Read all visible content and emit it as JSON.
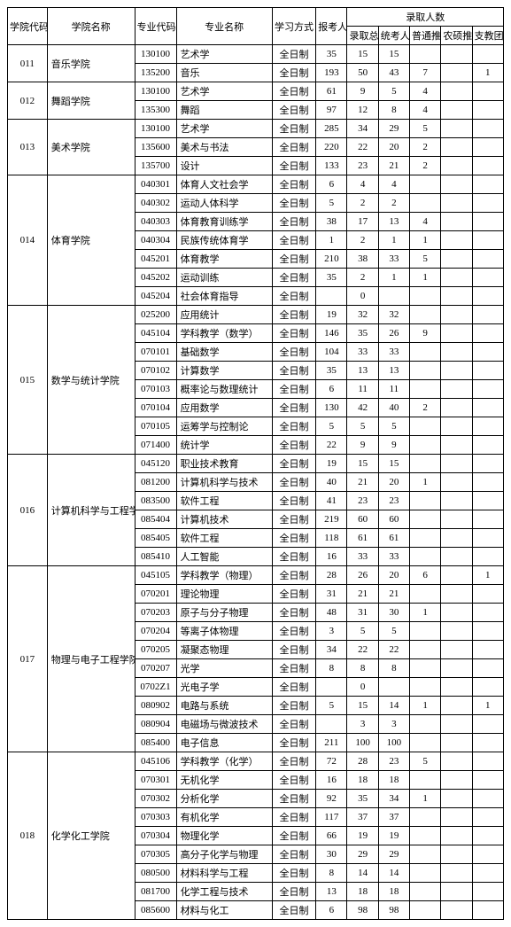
{
  "headers": {
    "col_school_code": "学院代码",
    "col_school_name": "学院名称",
    "col_major_code": "专业代码",
    "col_major_name": "专业名称",
    "col_study_mode": "学习方式",
    "col_applicants": "报考人数",
    "col_admitted_group": "录取人数",
    "col_admit_total": "录取总数",
    "col_admit_exam": "统考人数",
    "col_admit_general": "普通推免",
    "col_admit_rural": "农硕推免",
    "col_admit_support": "支教团推免"
  },
  "schools": [
    {
      "code": "011",
      "name": "音乐学院",
      "rows": [
        {
          "mc": "130100",
          "mn": "艺术学",
          "md": "全日制",
          "ap": "35",
          "a": "15",
          "b": "15",
          "c": "",
          "d": "",
          "e": ""
        },
        {
          "mc": "135200",
          "mn": "音乐",
          "md": "全日制",
          "ap": "193",
          "a": "50",
          "b": "43",
          "c": "7",
          "d": "",
          "e": "1"
        }
      ]
    },
    {
      "code": "012",
      "name": "舞蹈学院",
      "rows": [
        {
          "mc": "130100",
          "mn": "艺术学",
          "md": "全日制",
          "ap": "61",
          "a": "9",
          "b": "5",
          "c": "4",
          "d": "",
          "e": ""
        },
        {
          "mc": "135300",
          "mn": "舞蹈",
          "md": "全日制",
          "ap": "97",
          "a": "12",
          "b": "8",
          "c": "4",
          "d": "",
          "e": ""
        }
      ]
    },
    {
      "code": "013",
      "name": "美术学院",
      "rows": [
        {
          "mc": "130100",
          "mn": "艺术学",
          "md": "全日制",
          "ap": "285",
          "a": "34",
          "b": "29",
          "c": "5",
          "d": "",
          "e": ""
        },
        {
          "mc": "135600",
          "mn": "美术与书法",
          "md": "全日制",
          "ap": "220",
          "a": "22",
          "b": "20",
          "c": "2",
          "d": "",
          "e": ""
        },
        {
          "mc": "135700",
          "mn": "设计",
          "md": "全日制",
          "ap": "133",
          "a": "23",
          "b": "21",
          "c": "2",
          "d": "",
          "e": ""
        }
      ]
    },
    {
      "code": "014",
      "name": "体育学院",
      "rows": [
        {
          "mc": "040301",
          "mn": "体育人文社会学",
          "md": "全日制",
          "ap": "6",
          "a": "4",
          "b": "4",
          "c": "",
          "d": "",
          "e": ""
        },
        {
          "mc": "040302",
          "mn": "运动人体科学",
          "md": "全日制",
          "ap": "5",
          "a": "2",
          "b": "2",
          "c": "",
          "d": "",
          "e": ""
        },
        {
          "mc": "040303",
          "mn": "体育教育训练学",
          "md": "全日制",
          "ap": "38",
          "a": "17",
          "b": "13",
          "c": "4",
          "d": "",
          "e": ""
        },
        {
          "mc": "040304",
          "mn": "民族传统体育学",
          "md": "全日制",
          "ap": "1",
          "a": "2",
          "b": "1",
          "c": "1",
          "d": "",
          "e": ""
        },
        {
          "mc": "045201",
          "mn": "体育教学",
          "md": "全日制",
          "ap": "210",
          "a": "38",
          "b": "33",
          "c": "5",
          "d": "",
          "e": ""
        },
        {
          "mc": "045202",
          "mn": "运动训练",
          "md": "全日制",
          "ap": "35",
          "a": "2",
          "b": "1",
          "c": "1",
          "d": "",
          "e": ""
        },
        {
          "mc": "045204",
          "mn": "社会体育指导",
          "md": "全日制",
          "ap": "",
          "a": "0",
          "b": "",
          "c": "",
          "d": "",
          "e": ""
        }
      ]
    },
    {
      "code": "015",
      "name": "数学与统计学院",
      "rows": [
        {
          "mc": "025200",
          "mn": "应用统计",
          "md": "全日制",
          "ap": "19",
          "a": "32",
          "b": "32",
          "c": "",
          "d": "",
          "e": ""
        },
        {
          "mc": "045104",
          "mn": "学科教学（数学）",
          "md": "全日制",
          "ap": "146",
          "a": "35",
          "b": "26",
          "c": "9",
          "d": "",
          "e": ""
        },
        {
          "mc": "070101",
          "mn": "基础数学",
          "md": "全日制",
          "ap": "104",
          "a": "33",
          "b": "33",
          "c": "",
          "d": "",
          "e": ""
        },
        {
          "mc": "070102",
          "mn": "计算数学",
          "md": "全日制",
          "ap": "35",
          "a": "13",
          "b": "13",
          "c": "",
          "d": "",
          "e": ""
        },
        {
          "mc": "070103",
          "mn": "概率论与数理统计",
          "md": "全日制",
          "ap": "6",
          "a": "11",
          "b": "11",
          "c": "",
          "d": "",
          "e": ""
        },
        {
          "mc": "070104",
          "mn": "应用数学",
          "md": "全日制",
          "ap": "130",
          "a": "42",
          "b": "40",
          "c": "2",
          "d": "",
          "e": ""
        },
        {
          "mc": "070105",
          "mn": "运筹学与控制论",
          "md": "全日制",
          "ap": "5",
          "a": "5",
          "b": "5",
          "c": "",
          "d": "",
          "e": ""
        },
        {
          "mc": "071400",
          "mn": "统计学",
          "md": "全日制",
          "ap": "22",
          "a": "9",
          "b": "9",
          "c": "",
          "d": "",
          "e": ""
        }
      ]
    },
    {
      "code": "016",
      "name": "计算机科学与工程学院",
      "rows": [
        {
          "mc": "045120",
          "mn": "职业技术教育",
          "md": "全日制",
          "ap": "19",
          "a": "15",
          "b": "15",
          "c": "",
          "d": "",
          "e": ""
        },
        {
          "mc": "081200",
          "mn": "计算机科学与技术",
          "md": "全日制",
          "ap": "40",
          "a": "21",
          "b": "20",
          "c": "1",
          "d": "",
          "e": ""
        },
        {
          "mc": "083500",
          "mn": "软件工程",
          "md": "全日制",
          "ap": "41",
          "a": "23",
          "b": "23",
          "c": "",
          "d": "",
          "e": ""
        },
        {
          "mc": "085404",
          "mn": "计算机技术",
          "md": "全日制",
          "ap": "219",
          "a": "60",
          "b": "60",
          "c": "",
          "d": "",
          "e": ""
        },
        {
          "mc": "085405",
          "mn": "软件工程",
          "md": "全日制",
          "ap": "118",
          "a": "61",
          "b": "61",
          "c": "",
          "d": "",
          "e": ""
        },
        {
          "mc": "085410",
          "mn": "人工智能",
          "md": "全日制",
          "ap": "16",
          "a": "33",
          "b": "33",
          "c": "",
          "d": "",
          "e": ""
        }
      ]
    },
    {
      "code": "017",
      "name": "物理与电子工程学院",
      "rows": [
        {
          "mc": "045105",
          "mn": "学科教学（物理）",
          "md": "全日制",
          "ap": "28",
          "a": "26",
          "b": "20",
          "c": "6",
          "d": "",
          "e": "1"
        },
        {
          "mc": "070201",
          "mn": "理论物理",
          "md": "全日制",
          "ap": "31",
          "a": "21",
          "b": "21",
          "c": "",
          "d": "",
          "e": ""
        },
        {
          "mc": "070203",
          "mn": "原子与分子物理",
          "md": "全日制",
          "ap": "48",
          "a": "31",
          "b": "30",
          "c": "1",
          "d": "",
          "e": ""
        },
        {
          "mc": "070204",
          "mn": "等离子体物理",
          "md": "全日制",
          "ap": "3",
          "a": "5",
          "b": "5",
          "c": "",
          "d": "",
          "e": ""
        },
        {
          "mc": "070205",
          "mn": "凝聚态物理",
          "md": "全日制",
          "ap": "34",
          "a": "22",
          "b": "22",
          "c": "",
          "d": "",
          "e": ""
        },
        {
          "mc": "070207",
          "mn": "光学",
          "md": "全日制",
          "ap": "8",
          "a": "8",
          "b": "8",
          "c": "",
          "d": "",
          "e": ""
        },
        {
          "mc": "0702Z1",
          "mn": "光电子学",
          "md": "全日制",
          "ap": "",
          "a": "0",
          "b": "",
          "c": "",
          "d": "",
          "e": ""
        },
        {
          "mc": "080902",
          "mn": "电路与系统",
          "md": "全日制",
          "ap": "5",
          "a": "15",
          "b": "14",
          "c": "1",
          "d": "",
          "e": "1"
        },
        {
          "mc": "080904",
          "mn": "电磁场与微波技术",
          "md": "全日制",
          "ap": "",
          "a": "3",
          "b": "3",
          "c": "",
          "d": "",
          "e": ""
        },
        {
          "mc": "085400",
          "mn": "电子信息",
          "md": "全日制",
          "ap": "211",
          "a": "100",
          "b": "100",
          "c": "",
          "d": "",
          "e": ""
        }
      ]
    },
    {
      "code": "018",
      "name": "化学化工学院",
      "rows": [
        {
          "mc": "045106",
          "mn": "学科教学（化学）",
          "md": "全日制",
          "ap": "72",
          "a": "28",
          "b": "23",
          "c": "5",
          "d": "",
          "e": ""
        },
        {
          "mc": "070301",
          "mn": "无机化学",
          "md": "全日制",
          "ap": "16",
          "a": "18",
          "b": "18",
          "c": "",
          "d": "",
          "e": ""
        },
        {
          "mc": "070302",
          "mn": "分析化学",
          "md": "全日制",
          "ap": "92",
          "a": "35",
          "b": "34",
          "c": "1",
          "d": "",
          "e": ""
        },
        {
          "mc": "070303",
          "mn": "有机化学",
          "md": "全日制",
          "ap": "117",
          "a": "37",
          "b": "37",
          "c": "",
          "d": "",
          "e": ""
        },
        {
          "mc": "070304",
          "mn": "物理化学",
          "md": "全日制",
          "ap": "66",
          "a": "19",
          "b": "19",
          "c": "",
          "d": "",
          "e": ""
        },
        {
          "mc": "070305",
          "mn": "高分子化学与物理",
          "md": "全日制",
          "ap": "30",
          "a": "29",
          "b": "29",
          "c": "",
          "d": "",
          "e": ""
        },
        {
          "mc": "080500",
          "mn": "材料科学与工程",
          "md": "全日制",
          "ap": "8",
          "a": "14",
          "b": "14",
          "c": "",
          "d": "",
          "e": ""
        },
        {
          "mc": "081700",
          "mn": "化学工程与技术",
          "md": "全日制",
          "ap": "13",
          "a": "18",
          "b": "18",
          "c": "",
          "d": "",
          "e": ""
        },
        {
          "mc": "085600",
          "mn": "材料与化工",
          "md": "全日制",
          "ap": "6",
          "a": "98",
          "b": "98",
          "c": "",
          "d": "",
          "e": ""
        }
      ]
    }
  ]
}
